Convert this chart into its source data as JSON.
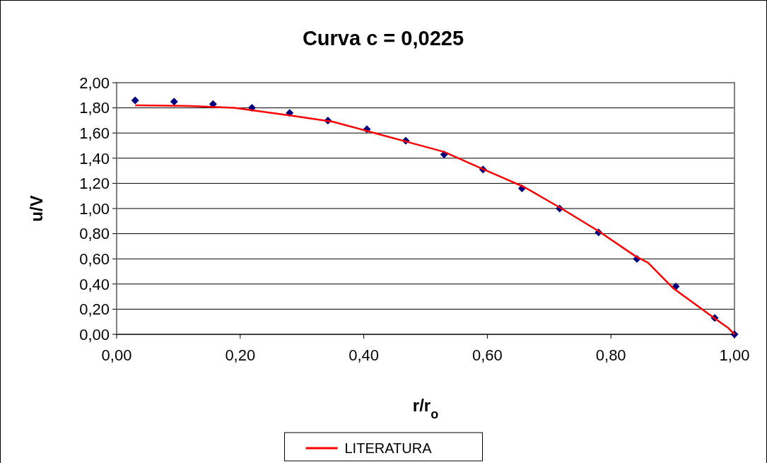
{
  "chart_data": {
    "type": "scatter",
    "title": "Curva c = 0,0225",
    "xlabel": "r/r$_{o}$",
    "ylabel": "u/V",
    "xlim": [
      0,
      1
    ],
    "xticks": [
      {
        "value": 0,
        "label": "0,00"
      },
      {
        "value": 0.2,
        "label": "0,20"
      },
      {
        "value": 0.4,
        "label": "0,40"
      },
      {
        "value": 0.6,
        "label": "0,60"
      },
      {
        "value": 0.8,
        "label": "0,80"
      },
      {
        "value": 1,
        "label": "1,00"
      }
    ],
    "ylim": [
      0,
      2
    ],
    "yticks": [
      {
        "value": 0,
        "label": "0,00"
      },
      {
        "value": 0.2,
        "label": "0,20"
      },
      {
        "value": 0.4,
        "label": "0,40"
      },
      {
        "value": 0.6,
        "label": "0,60"
      },
      {
        "value": 0.8,
        "label": "0,80"
      },
      {
        "value": 1,
        "label": "1,00"
      },
      {
        "value": 1.2,
        "label": "1,20"
      },
      {
        "value": 1.4,
        "label": "1,40"
      },
      {
        "value": 1.6,
        "label": "1,60"
      },
      {
        "value": 1.8,
        "label": "1,80"
      },
      {
        "value": 2,
        "label": "2,00"
      }
    ],
    "grid": "y",
    "legend": "bottom",
    "series": [
      {
        "color": "#000080",
        "marker": "diamond",
        "x": [
          0.03,
          0.093,
          0.156,
          0.219,
          0.28,
          0.342,
          0.405,
          0.468,
          0.53,
          0.593,
          0.656,
          0.717,
          0.78,
          0.842,
          0.905,
          0.968,
          1.0
        ],
        "values": [
          1.86,
          1.85,
          1.83,
          1.8,
          1.76,
          1.7,
          1.63,
          1.54,
          1.43,
          1.31,
          1.16,
          1.0,
          0.81,
          0.6,
          0.38,
          0.13,
          0
        ]
      },
      {
        "type": "line",
        "name": "LITERATURA",
        "color": "#ff0000",
        "marker": "none",
        "x": [
          0.03,
          0.12,
          0.19,
          0.28,
          0.35,
          0.41,
          0.47,
          0.53,
          0.59,
          0.66,
          0.72,
          0.78,
          0.84,
          0.86,
          0.9,
          0.97,
          0.99,
          1.0
        ],
        "values": [
          1.82,
          1.815,
          1.8,
          1.74,
          1.69,
          1.61,
          1.53,
          1.45,
          1.32,
          1.17,
          1.0,
          0.82,
          0.62,
          0.57,
          0.37,
          0.12,
          0.05,
          0
        ]
      }
    ]
  }
}
